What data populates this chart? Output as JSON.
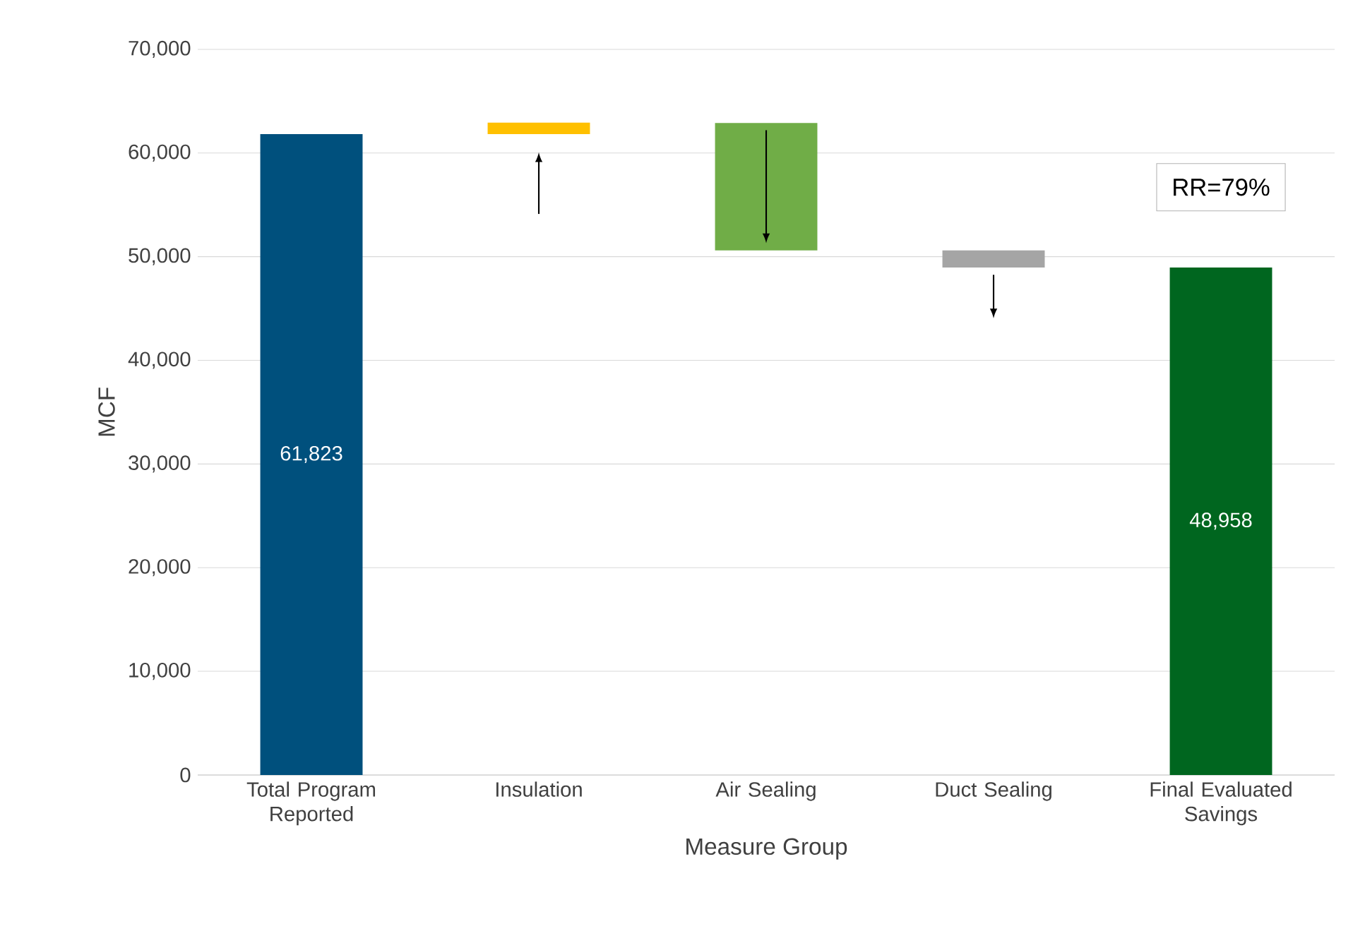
{
  "chart_data": {
    "type": "bar",
    "xlabel": "Measure Group",
    "ylabel": "MCF",
    "categories": [
      "Total Program Reported",
      "Insulation",
      "Air Sealing",
      "Duct Sealing",
      "Final Evaluated Savings"
    ],
    "values": [
      61823,
      1100,
      -12300,
      -1650,
      48958
    ],
    "base": [
      0,
      61823,
      62900,
      50600,
      0
    ],
    "colors": [
      "#00507d",
      "#ffc000",
      "#70ad47",
      "#a5a5a5",
      "#00661f"
    ],
    "value_labels": [
      "61,823",
      null,
      null,
      null,
      "48,958"
    ],
    "ylim": [
      0,
      70000
    ],
    "yticks": [
      0,
      {
        "value": 10000,
        "label": "10,000"
      },
      {
        "value": 20000,
        "label": "20,000"
      },
      {
        "value": 30000,
        "label": "30,000"
      },
      {
        "value": 40000,
        "label": "40,000"
      },
      {
        "value": 50000,
        "label": "50,000"
      },
      {
        "value": 60000,
        "label": "60,000"
      },
      {
        "value": 70000,
        "label": "70,000"
      }
    ],
    "grid": "y",
    "annotations": [
      "RR=79%"
    ]
  }
}
